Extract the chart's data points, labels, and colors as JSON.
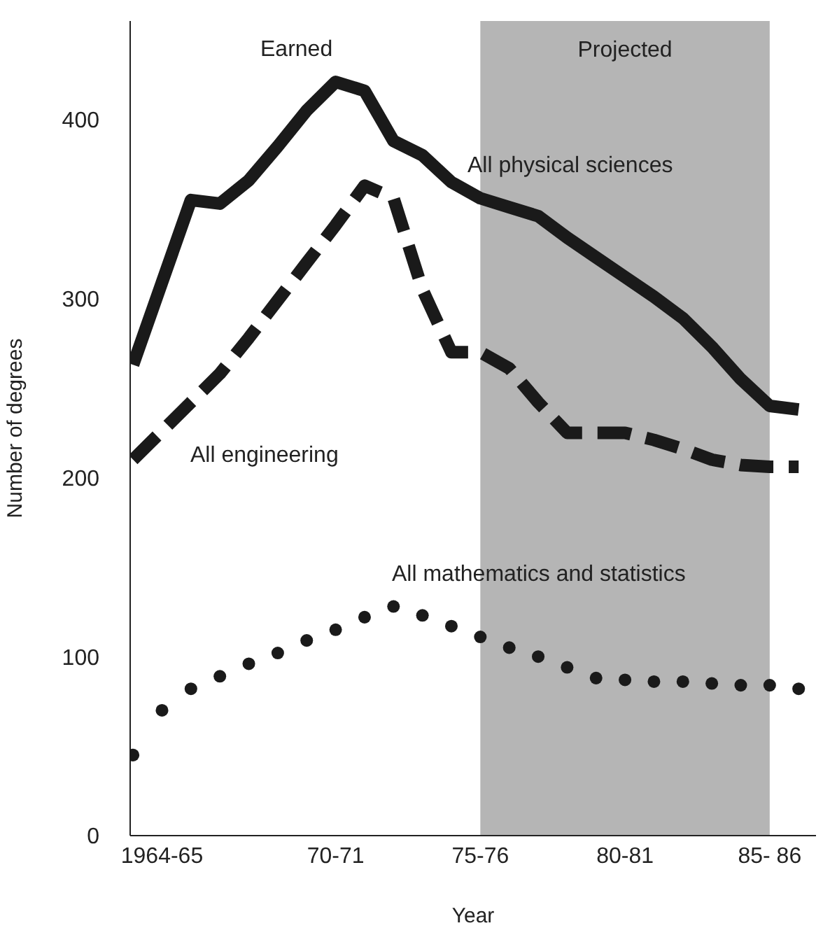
{
  "chart_data": {
    "type": "line",
    "xlabel": "Year",
    "ylabel": "Number of degrees",
    "categories": [
      null,
      "1964-65",
      null,
      null,
      null,
      null,
      null,
      "70-71",
      null,
      null,
      null,
      null,
      "75-76",
      null,
      null,
      null,
      null,
      "80-81",
      null,
      null,
      null,
      null,
      "85- 86",
      null
    ],
    "ylim": [
      0,
      455
    ],
    "yticks": [
      0,
      100,
      200,
      300,
      400
    ],
    "series": [
      {
        "name": "All physical sciences",
        "color": "#1a1a1a",
        "line_style": "solid",
        "values": [
          263,
          309,
          355,
          353,
          366,
          385,
          405,
          421,
          416,
          388,
          380,
          365,
          356,
          351,
          346,
          334,
          323,
          312,
          301,
          289,
          273,
          255,
          240,
          238
        ]
      },
      {
        "name": "All engineering",
        "color": "#1a1a1a",
        "line_style": "dashed",
        "values": [
          210,
          226,
          242,
          258,
          278,
          299,
          320,
          341,
          363,
          356,
          305,
          270,
          270,
          261,
          242,
          225,
          225,
          225,
          221,
          216,
          210,
          207,
          206,
          206
        ]
      },
      {
        "name": "All mathematics and statistics",
        "type": "scatter",
        "color": "#1a1a1a",
        "marker": "circle",
        "values": [
          45,
          70,
          82,
          89,
          96,
          102,
          109,
          115,
          122,
          128,
          123,
          117,
          111,
          105,
          100,
          94,
          88,
          87,
          86,
          86,
          85,
          84,
          84,
          82
        ]
      }
    ],
    "bands": [
      {
        "axis": "x",
        "from": "75-76",
        "to": "85- 86",
        "label": "Projected",
        "color": "#b5b5b5"
      }
    ],
    "annotations": [
      "Earned"
    ]
  }
}
